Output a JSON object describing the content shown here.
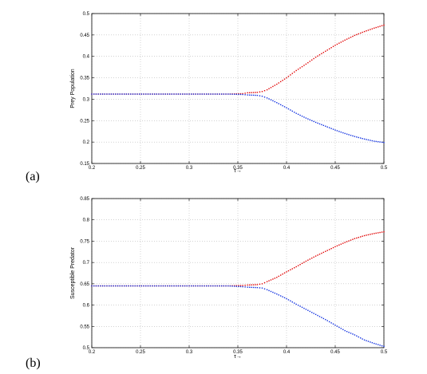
{
  "chart_data": [
    {
      "type": "scatter",
      "panel_label": "(a)",
      "xlabel": "τ→",
      "ylabel": "Prey Population",
      "xlim": [
        0.2,
        0.5
      ],
      "ylim": [
        0.15,
        0.5
      ],
      "xticks": [
        "0.2",
        "0.25",
        "0.3",
        "0.35",
        "0.4",
        "0.45",
        "0.5"
      ],
      "yticks": [
        "0.15",
        "0.2",
        "0.25",
        "0.3",
        "0.35",
        "0.4",
        "0.45",
        "0.5"
      ],
      "grid": true,
      "series": [
        {
          "color": "#e00000",
          "points": [
            [
              0.2,
              0.312
            ],
            [
              0.22,
              0.312
            ],
            [
              0.24,
              0.312
            ],
            [
              0.26,
              0.312
            ],
            [
              0.28,
              0.312
            ],
            [
              0.3,
              0.312
            ],
            [
              0.32,
              0.312
            ],
            [
              0.34,
              0.312
            ],
            [
              0.355,
              0.313
            ],
            [
              0.36,
              0.315
            ],
            [
              0.37,
              0.316
            ],
            [
              0.375,
              0.318
            ],
            [
              0.38,
              0.322
            ],
            [
              0.39,
              0.335
            ],
            [
              0.4,
              0.35
            ],
            [
              0.41,
              0.367
            ],
            [
              0.42,
              0.382
            ],
            [
              0.43,
              0.398
            ],
            [
              0.44,
              0.412
            ],
            [
              0.45,
              0.426
            ],
            [
              0.46,
              0.438
            ],
            [
              0.47,
              0.449
            ],
            [
              0.48,
              0.458
            ],
            [
              0.49,
              0.466
            ],
            [
              0.5,
              0.473
            ]
          ]
        },
        {
          "color": "#1030e0",
          "points": [
            [
              0.2,
              0.312
            ],
            [
              0.22,
              0.312
            ],
            [
              0.24,
              0.312
            ],
            [
              0.26,
              0.312
            ],
            [
              0.28,
              0.312
            ],
            [
              0.3,
              0.312
            ],
            [
              0.32,
              0.312
            ],
            [
              0.34,
              0.312
            ],
            [
              0.355,
              0.311
            ],
            [
              0.36,
              0.31
            ],
            [
              0.37,
              0.309
            ],
            [
              0.375,
              0.307
            ],
            [
              0.38,
              0.303
            ],
            [
              0.39,
              0.292
            ],
            [
              0.4,
              0.28
            ],
            [
              0.41,
              0.267
            ],
            [
              0.42,
              0.256
            ],
            [
              0.43,
              0.246
            ],
            [
              0.44,
              0.237
            ],
            [
              0.45,
              0.228
            ],
            [
              0.46,
              0.22
            ],
            [
              0.47,
              0.213
            ],
            [
              0.48,
              0.207
            ],
            [
              0.49,
              0.202
            ],
            [
              0.5,
              0.199
            ]
          ]
        }
      ]
    },
    {
      "type": "scatter",
      "panel_label": "(b)",
      "xlabel": "τ→",
      "ylabel": "Susceptible Predator",
      "xlim": [
        0.2,
        0.5
      ],
      "ylim": [
        0.5,
        0.85
      ],
      "xticks": [
        "0.2",
        "0.25",
        "0.3",
        "0.35",
        "0.4",
        "0.45",
        "0.5"
      ],
      "yticks": [
        "0.5",
        "0.55",
        "0.6",
        "0.65",
        "0.7",
        "0.75",
        "0.8",
        "0.85"
      ],
      "grid": true,
      "series": [
        {
          "color": "#e00000",
          "points": [
            [
              0.2,
              0.645
            ],
            [
              0.22,
              0.645
            ],
            [
              0.24,
              0.645
            ],
            [
              0.26,
              0.645
            ],
            [
              0.28,
              0.645
            ],
            [
              0.3,
              0.645
            ],
            [
              0.32,
              0.645
            ],
            [
              0.34,
              0.645
            ],
            [
              0.355,
              0.646
            ],
            [
              0.36,
              0.647
            ],
            [
              0.37,
              0.648
            ],
            [
              0.375,
              0.65
            ],
            [
              0.38,
              0.655
            ],
            [
              0.39,
              0.665
            ],
            [
              0.4,
              0.678
            ],
            [
              0.41,
              0.69
            ],
            [
              0.42,
              0.703
            ],
            [
              0.43,
              0.715
            ],
            [
              0.44,
              0.726
            ],
            [
              0.45,
              0.737
            ],
            [
              0.46,
              0.747
            ],
            [
              0.47,
              0.756
            ],
            [
              0.48,
              0.763
            ],
            [
              0.49,
              0.768
            ],
            [
              0.5,
              0.772
            ]
          ]
        },
        {
          "color": "#1030e0",
          "points": [
            [
              0.2,
              0.645
            ],
            [
              0.22,
              0.645
            ],
            [
              0.24,
              0.645
            ],
            [
              0.26,
              0.645
            ],
            [
              0.28,
              0.645
            ],
            [
              0.3,
              0.645
            ],
            [
              0.32,
              0.645
            ],
            [
              0.34,
              0.645
            ],
            [
              0.355,
              0.643
            ],
            [
              0.36,
              0.642
            ],
            [
              0.37,
              0.641
            ],
            [
              0.375,
              0.64
            ],
            [
              0.38,
              0.636
            ],
            [
              0.39,
              0.626
            ],
            [
              0.4,
              0.615
            ],
            [
              0.41,
              0.602
            ],
            [
              0.42,
              0.59
            ],
            [
              0.43,
              0.578
            ],
            [
              0.44,
              0.566
            ],
            [
              0.45,
              0.553
            ],
            [
              0.46,
              0.54
            ],
            [
              0.47,
              0.53
            ],
            [
              0.48,
              0.518
            ],
            [
              0.49,
              0.51
            ],
            [
              0.5,
              0.503
            ]
          ]
        }
      ]
    }
  ]
}
